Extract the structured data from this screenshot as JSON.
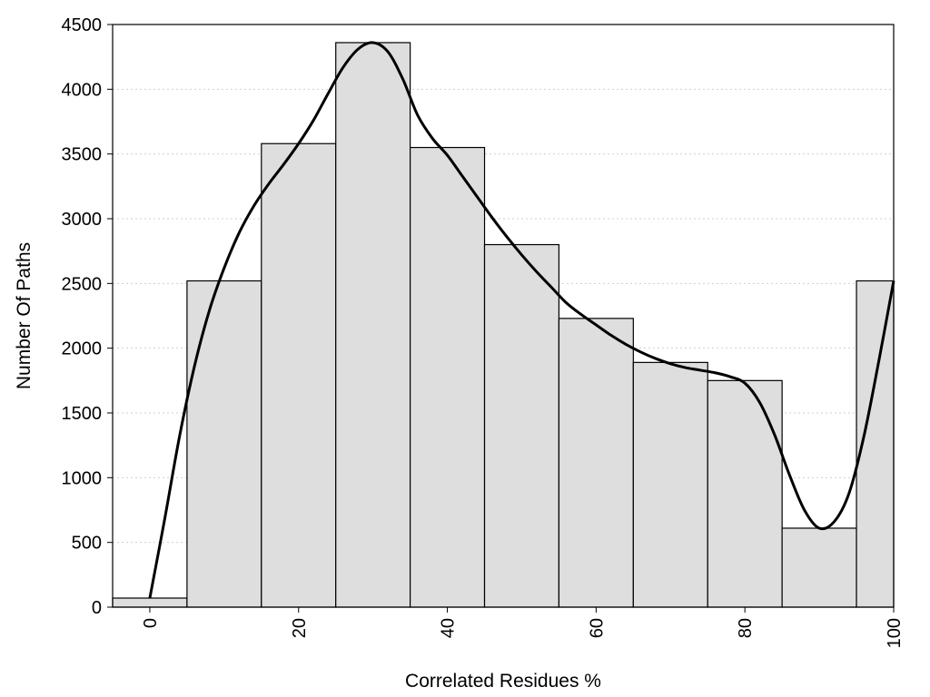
{
  "chart_data": {
    "type": "bar",
    "title": "",
    "xlabel": "Correlated Residues %",
    "ylabel": "Number Of Paths",
    "xlim": [
      -5,
      100
    ],
    "ylim": [
      0,
      4500
    ],
    "x_ticks": [
      "0",
      "20",
      "40",
      "60",
      "80",
      "100"
    ],
    "y_ticks": [
      "0",
      "500",
      "1000",
      "1500",
      "2000",
      "2500",
      "3000",
      "3500",
      "4000",
      "4500"
    ],
    "grid": true,
    "legend": "none",
    "bin_width": 10,
    "bars": [
      {
        "center": 0,
        "value": 70
      },
      {
        "center": 10,
        "value": 2520
      },
      {
        "center": 20,
        "value": 3580
      },
      {
        "center": 30,
        "value": 4360
      },
      {
        "center": 40,
        "value": 3550
      },
      {
        "center": 50,
        "value": 2800
      },
      {
        "center": 60,
        "value": 2230
      },
      {
        "center": 70,
        "value": 1890
      },
      {
        "center": 80,
        "value": 1750
      },
      {
        "center": 90,
        "value": 610
      },
      {
        "center": 100,
        "value": 2520
      }
    ],
    "density_curve": {
      "x": [
        0,
        2,
        4,
        6,
        8,
        10,
        12,
        14,
        16,
        18,
        20,
        22,
        24,
        26,
        28,
        30,
        32,
        34,
        36,
        38,
        40,
        42,
        44,
        46,
        48,
        50,
        52,
        54,
        56,
        58,
        60,
        62,
        64,
        66,
        68,
        70,
        72,
        74,
        76,
        78,
        80,
        82,
        84,
        86,
        88,
        90,
        92,
        94,
        96,
        98,
        100
      ],
      "y": [
        70,
        680,
        1320,
        1860,
        2290,
        2620,
        2890,
        3100,
        3270,
        3420,
        3580,
        3760,
        3970,
        4170,
        4310,
        4360,
        4290,
        4080,
        3800,
        3620,
        3490,
        3330,
        3170,
        3010,
        2860,
        2720,
        2590,
        2470,
        2350,
        2260,
        2180,
        2100,
        2030,
        1970,
        1920,
        1880,
        1850,
        1830,
        1810,
        1780,
        1730,
        1580,
        1330,
        1020,
        750,
        610,
        660,
        880,
        1320,
        1900,
        2520
      ]
    },
    "colors": {
      "bar_fill": "#dedede",
      "bar_stroke": "#000000",
      "curve": "#000000",
      "grid": "#cfcfcf"
    }
  }
}
